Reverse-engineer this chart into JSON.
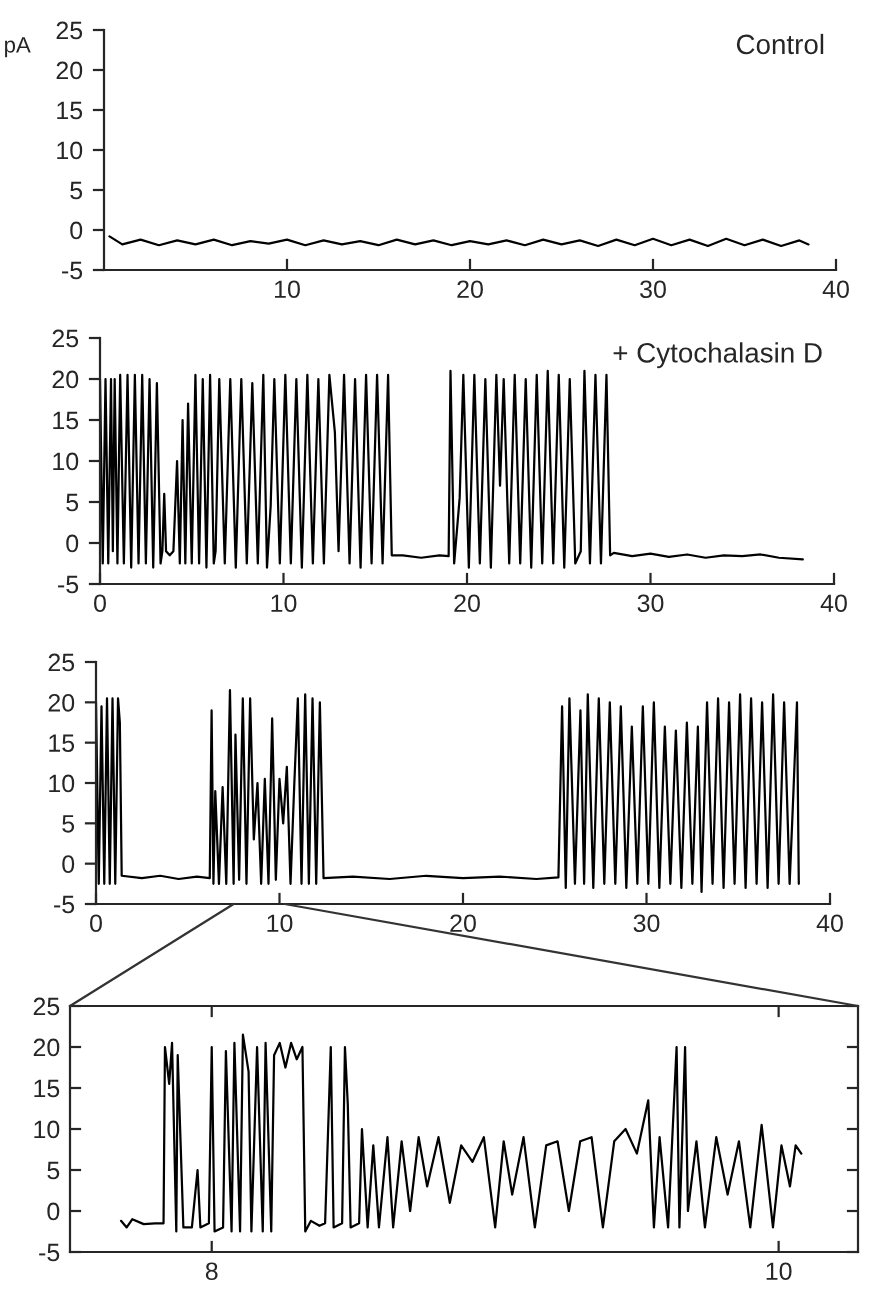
{
  "chart_data": [
    {
      "type": "line",
      "ylabel": "pA",
      "annotations": [
        "Control"
      ],
      "xlim": [
        0,
        40
      ],
      "ylim": [
        -5,
        25
      ],
      "xticks": [
        10,
        20,
        30,
        40
      ],
      "yticks": [
        -5,
        0,
        5,
        10,
        15,
        20,
        25
      ],
      "grid": false,
      "legend": false,
      "series": [
        {
          "color": "#000000",
          "x": [
            0.3,
            1,
            2,
            3,
            4,
            5,
            6,
            7,
            8,
            9,
            10,
            11,
            12,
            13,
            14,
            15,
            16,
            17,
            18,
            19,
            20,
            21,
            22,
            23,
            24,
            25,
            26,
            27,
            28,
            29,
            30,
            31,
            32,
            33,
            34,
            35,
            36,
            37,
            38,
            38.5
          ],
          "values": [
            -0.8,
            -1.8,
            -1.2,
            -1.9,
            -1.3,
            -1.8,
            -1.2,
            -1.9,
            -1.4,
            -1.7,
            -1.2,
            -1.9,
            -1.3,
            -1.8,
            -1.4,
            -1.9,
            -1.2,
            -1.8,
            -1.3,
            -1.9,
            -1.4,
            -1.8,
            -1.3,
            -1.9,
            -1.2,
            -1.8,
            -1.3,
            -2.0,
            -1.2,
            -1.9,
            -1.1,
            -1.9,
            -1.2,
            -2.0,
            -1.1,
            -1.9,
            -1.2,
            -2.0,
            -1.3,
            -1.8
          ]
        }
      ]
    },
    {
      "type": "line",
      "annotations": [
        "+ Cytochalasin D"
      ],
      "xlim": [
        0,
        40
      ],
      "ylim": [
        -5,
        25
      ],
      "xticks": [
        0,
        10,
        20,
        30,
        40
      ],
      "yticks": [
        -5,
        0,
        5,
        10,
        15,
        20,
        25
      ],
      "grid": false,
      "legend": false,
      "series": [
        {
          "color": "#000000",
          "x": [
            0,
            0.15,
            0.3,
            0.45,
            0.6,
            0.7,
            0.8,
            0.95,
            1.1,
            1.3,
            1.5,
            1.7,
            1.9,
            2.1,
            2.3,
            2.5,
            2.7,
            2.9,
            3.1,
            3.3,
            3.4,
            3.5,
            3.6,
            3.8,
            4.0,
            4.2,
            4.35,
            4.5,
            4.65,
            4.8,
            5.0,
            5.2,
            5.4,
            5.6,
            5.8,
            6.0,
            6.2,
            6.3,
            6.5,
            6.8,
            7.1,
            7.4,
            7.7,
            8.0,
            8.3,
            8.6,
            8.9,
            9.1,
            9.3,
            9.5,
            9.8,
            10.1,
            10.4,
            10.7,
            11.0,
            11.3,
            11.6,
            11.9,
            12.2,
            12.5,
            12.8,
            13.0,
            13.3,
            13.6,
            13.9,
            14.2,
            14.5,
            14.8,
            15.1,
            15.4,
            15.7,
            15.9,
            16.5,
            17.5,
            18.5,
            19.0,
            19.1,
            19.3,
            19.6,
            19.8,
            20.1,
            20.4,
            20.7,
            21.0,
            21.3,
            21.6,
            21.8,
            22.0,
            22.3,
            22.6,
            22.9,
            23.2,
            23.5,
            23.8,
            24.1,
            24.4,
            24.7,
            25.0,
            25.3,
            25.6,
            25.9,
            26.2,
            26.4,
            26.7,
            27.0,
            27.3,
            27.6,
            27.8,
            28.0,
            29,
            30,
            31,
            32,
            33,
            34,
            35,
            36,
            37,
            38.3
          ],
          "values": [
            20,
            -2.5,
            20,
            -2.5,
            20,
            -1,
            20,
            -2.5,
            20.5,
            -2.5,
            20.5,
            -3,
            20.5,
            -2.5,
            20.5,
            -2.5,
            20,
            -3,
            19.5,
            -2.5,
            -1,
            6,
            -1,
            -1.5,
            -1,
            10,
            -2.5,
            15,
            -2.5,
            17,
            -2.5,
            20.5,
            -2.5,
            20,
            -3,
            20.5,
            -2.5,
            -1,
            20,
            -2.5,
            20,
            -3,
            20,
            -2.5,
            19.5,
            -2.5,
            20.5,
            -3,
            4.5,
            20,
            -2.5,
            20.5,
            -2.5,
            20,
            -3,
            20.5,
            -2.5,
            20,
            -2.5,
            20.5,
            13.5,
            -1,
            20.5,
            -2.5,
            20,
            -3,
            20.5,
            -2.5,
            20.5,
            -2.5,
            20.5,
            -1.5,
            -1.5,
            -1.8,
            -1.5,
            -1.6,
            21,
            -2.5,
            5.5,
            20.5,
            -3,
            20.5,
            -2.5,
            20,
            -3,
            20.5,
            7,
            20,
            -2.5,
            20.5,
            -2.5,
            20,
            -3,
            20.5,
            -2.5,
            21,
            -2.5,
            20.5,
            -3,
            20,
            -2.5,
            -1,
            21,
            -2.5,
            20.5,
            -2.5,
            20.5,
            -1.5,
            -1.2,
            -1.6,
            -1.3,
            -1.7,
            -1.4,
            -1.8,
            -1.5,
            -1.6,
            -1.4,
            -1.8,
            -2
          ]
        }
      ]
    },
    {
      "type": "line",
      "xlim": [
        0,
        40
      ],
      "ylim": [
        -5,
        25
      ],
      "xticks": [
        0,
        10,
        20,
        30,
        40
      ],
      "yticks": [
        -5,
        0,
        5,
        10,
        15,
        20,
        25
      ],
      "grid": false,
      "legend": false,
      "series": [
        {
          "color": "#000000",
          "x": [
            0,
            0.15,
            0.3,
            0.45,
            0.6,
            0.75,
            0.9,
            1.05,
            1.2,
            1.3,
            1.4,
            2.5,
            3.5,
            4.5,
            5.5,
            6.2,
            6.3,
            6.4,
            6.5,
            6.7,
            6.9,
            7.1,
            7.3,
            7.5,
            7.6,
            7.8,
            8.0,
            8.2,
            8.4,
            8.6,
            8.8,
            9.0,
            9.2,
            9.4,
            9.6,
            9.8,
            10.0,
            10.2,
            10.4,
            10.6,
            10.8,
            11.0,
            11.2,
            11.4,
            11.6,
            11.8,
            12.0,
            12.2,
            12.4,
            14,
            16,
            18,
            20,
            22,
            24,
            25.2,
            25.4,
            25.6,
            25.8,
            26.1,
            26.4,
            26.6,
            26.8,
            27.1,
            27.4,
            27.7,
            28.0,
            28.3,
            28.6,
            28.9,
            29.2,
            29.5,
            29.8,
            30.1,
            30.4,
            30.7,
            31.0,
            31.3,
            31.6,
            31.9,
            32.2,
            32.5,
            32.8,
            33.0,
            33.3,
            33.6,
            33.9,
            34.2,
            34.5,
            34.8,
            35.1,
            35.4,
            35.7,
            36.0,
            36.3,
            36.6,
            36.9,
            37.2,
            37.5,
            37.8,
            38.0,
            38.2,
            38.3
          ],
          "values": [
            20,
            -2.5,
            19.5,
            -2.5,
            20.5,
            -2.5,
            20.5,
            -2.5,
            20.5,
            17.5,
            -1.5,
            -1.8,
            -1.5,
            -1.9,
            -1.6,
            -1.8,
            19,
            -2.5,
            9,
            -2.5,
            9.5,
            -2.5,
            21.5,
            -2.5,
            16,
            -2,
            20.5,
            -2.5,
            20.5,
            3,
            10,
            -2.5,
            10.5,
            -2.5,
            18,
            -2,
            10.5,
            5,
            12,
            -2.5,
            9.5,
            20.5,
            -2.5,
            21,
            -2.5,
            20.5,
            -2.5,
            20,
            -1.8,
            -1.6,
            -1.9,
            -1.5,
            -1.8,
            -1.6,
            -1.9,
            -1.7,
            19.5,
            -3,
            20.5,
            -2.5,
            19,
            -2.5,
            21,
            -3,
            20.5,
            -2.5,
            20,
            -2.5,
            19.5,
            -3,
            17,
            -2.5,
            19.5,
            -2.5,
            20,
            -3,
            17,
            -2.5,
            16.5,
            -3,
            17.5,
            -2.5,
            17,
            -3.5,
            20,
            -2.5,
            20.5,
            -3,
            20,
            -2.5,
            21,
            -3,
            20.5,
            -2.5,
            20,
            -3,
            21,
            -2.5,
            20,
            -2.5,
            8.5,
            20,
            -2.5
          ]
        }
      ]
    },
    {
      "type": "line",
      "xlim": [
        7.5,
        10.28
      ],
      "ylim": [
        -5,
        25
      ],
      "xticks": [
        8,
        10
      ],
      "yticks": [
        -5,
        0,
        5,
        10,
        15,
        20,
        25
      ],
      "grid": false,
      "legend": false,
      "series": [
        {
          "color": "#000000",
          "x": [
            7.68,
            7.7,
            7.72,
            7.76,
            7.8,
            7.83,
            7.835,
            7.85,
            7.86,
            7.875,
            7.88,
            7.9,
            7.93,
            7.95,
            7.96,
            7.99,
            8.0,
            8.01,
            8.04,
            8.05,
            8.07,
            8.08,
            8.1,
            8.11,
            8.13,
            8.14,
            8.16,
            8.18,
            8.19,
            8.21,
            8.22,
            8.24,
            8.26,
            8.28,
            8.3,
            8.32,
            8.33,
            8.35,
            8.38,
            8.4,
            8.42,
            8.43,
            8.46,
            8.47,
            8.48,
            8.49,
            8.52,
            8.53,
            8.55,
            8.57,
            8.59,
            8.62,
            8.64,
            8.67,
            8.7,
            8.73,
            8.76,
            8.8,
            8.84,
            8.88,
            8.92,
            8.96,
            9.0,
            9.03,
            9.06,
            9.1,
            9.14,
            9.18,
            9.22,
            9.26,
            9.3,
            9.34,
            9.38,
            9.42,
            9.46,
            9.5,
            9.54,
            9.56,
            9.58,
            9.61,
            9.64,
            9.65,
            9.67,
            9.68,
            9.71,
            9.74,
            9.78,
            9.82,
            9.86,
            9.9,
            9.94,
            9.98,
            10.01,
            10.04,
            10.06,
            10.08
          ],
          "values": [
            -1.2,
            -2,
            -1,
            -1.6,
            -1.5,
            -1.5,
            20,
            15.5,
            20.5,
            -2.5,
            19,
            -2,
            -2,
            5,
            -2,
            -1.5,
            20,
            -2.5,
            -2,
            19.5,
            -2.5,
            20.5,
            -2.5,
            21.5,
            17,
            -2.5,
            20,
            -2.5,
            20.5,
            -2.5,
            19,
            20.5,
            17.5,
            20.5,
            18.5,
            20,
            -2.5,
            -1.2,
            -1.8,
            -1.5,
            20,
            -2,
            -1.5,
            20,
            13,
            -2,
            -1.5,
            10,
            -2,
            8,
            -2,
            9,
            -2,
            8.5,
            0,
            9,
            3,
            9,
            1,
            8,
            6,
            9,
            -2,
            8.5,
            2,
            9,
            -2,
            8,
            8.5,
            0,
            8.5,
            9,
            -2,
            8.5,
            10,
            7,
            13.5,
            -2,
            9,
            -2,
            20,
            -2,
            20,
            0,
            8.5,
            -2,
            9,
            2,
            8.5,
            -2,
            10.5,
            -2,
            8,
            3,
            8,
            7
          ]
        }
      ]
    }
  ]
}
